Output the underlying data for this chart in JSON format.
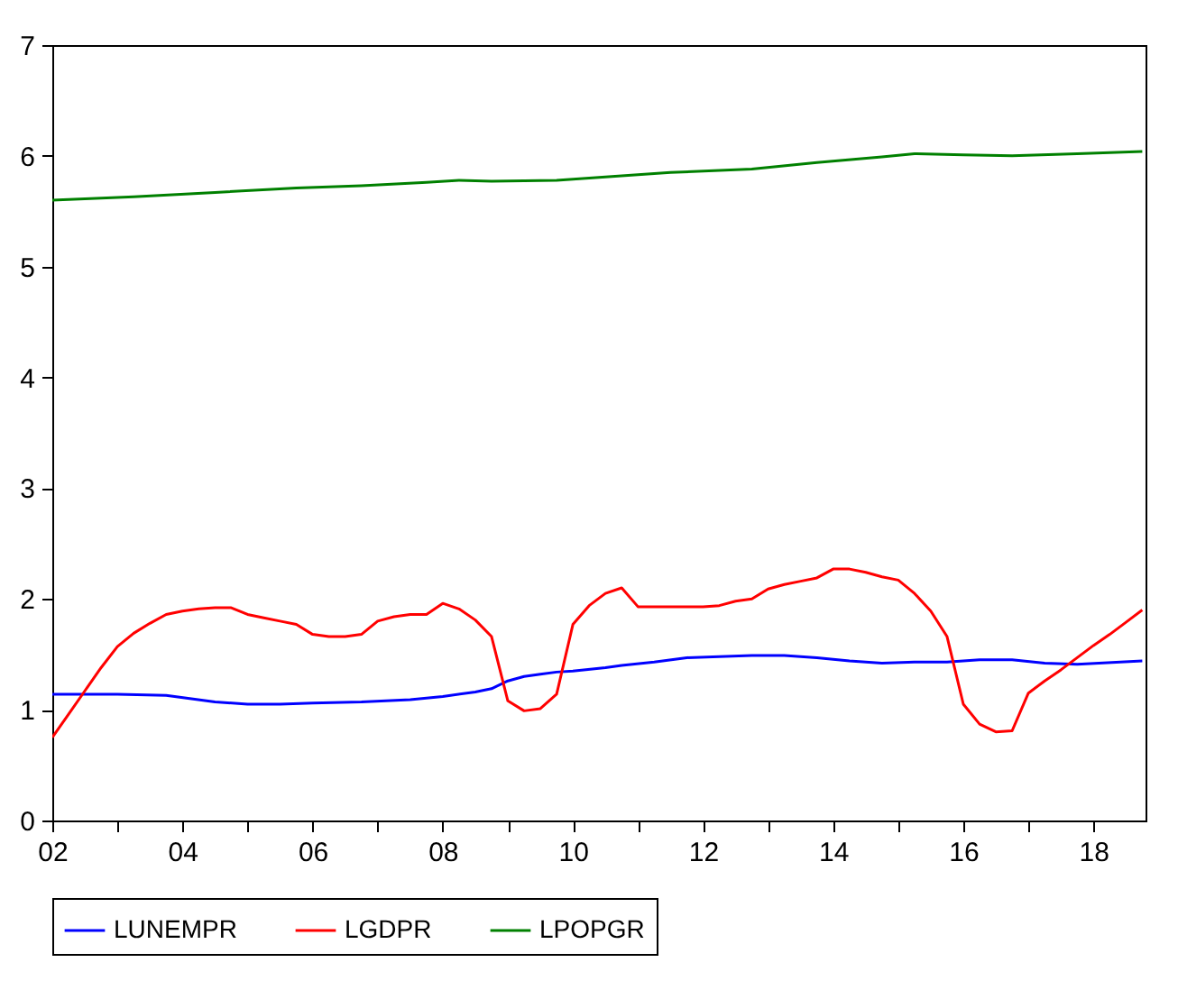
{
  "chart_data": {
    "type": "line",
    "xlim": [
      2002,
      2018.8
    ],
    "xticks": [
      {
        "value": 2002,
        "label": "02"
      },
      {
        "value": 2003,
        "label": null
      },
      {
        "value": 2004,
        "label": "04"
      },
      {
        "value": 2005,
        "label": null
      },
      {
        "value": 2006,
        "label": "06"
      },
      {
        "value": 2007,
        "label": null
      },
      {
        "value": 2008,
        "label": "08"
      },
      {
        "value": 2009,
        "label": null
      },
      {
        "value": 2010,
        "label": "10"
      },
      {
        "value": 2011,
        "label": null
      },
      {
        "value": 2012,
        "label": "12"
      },
      {
        "value": 2013,
        "label": null
      },
      {
        "value": 2014,
        "label": "14"
      },
      {
        "value": 2015,
        "label": null
      },
      {
        "value": 2016,
        "label": "16"
      },
      {
        "value": 2017,
        "label": null
      },
      {
        "value": 2018,
        "label": "18"
      }
    ],
    "ylim": [
      0,
      7
    ],
    "yticks": [
      0,
      1,
      2,
      3,
      4,
      5,
      6,
      7
    ],
    "grid": false,
    "legend": "bottom",
    "line_style": "solid",
    "marker": "none",
    "series": [
      {
        "name": "LUNEMPR",
        "color": "#0000ff",
        "x": [
          2002,
          2003,
          2003.75,
          2004.5,
          2005,
          2005.5,
          2006,
          2006.75,
          2007.5,
          2008,
          2008.5,
          2008.75,
          2009,
          2009.25,
          2009.5,
          2009.75,
          2010,
          2010.5,
          2010.75,
          2011.25,
          2011.75,
          2012.25,
          2012.75,
          2013.25,
          2013.5,
          2013.75,
          2014.25,
          2014.75,
          2015.25,
          2015.75,
          2016.25,
          2016.5,
          2016.75,
          2017.25,
          2017.75,
          2018.75
        ],
        "values": [
          1.14,
          1.14,
          1.13,
          1.07,
          1.05,
          1.05,
          1.06,
          1.07,
          1.09,
          1.12,
          1.16,
          1.19,
          1.26,
          1.3,
          1.32,
          1.34,
          1.35,
          1.38,
          1.4,
          1.43,
          1.47,
          1.48,
          1.49,
          1.49,
          1.48,
          1.47,
          1.44,
          1.42,
          1.43,
          1.43,
          1.45,
          1.45,
          1.45,
          1.42,
          1.41,
          1.44
        ]
      },
      {
        "name": "LGDPR",
        "color": "#ff0000",
        "x": [
          2002,
          2002.25,
          2002.5,
          2002.75,
          2003,
          2003.25,
          2003.5,
          2003.75,
          2004,
          2004.25,
          2004.5,
          2004.75,
          2005,
          2005.25,
          2005.5,
          2005.75,
          2006,
          2006.25,
          2006.5,
          2006.75,
          2007,
          2007.25,
          2007.5,
          2007.75,
          2008,
          2008.25,
          2008.5,
          2008.75,
          2009,
          2009.25,
          2009.5,
          2009.75,
          2010,
          2010.25,
          2010.5,
          2010.75,
          2011,
          2011.25,
          2011.5,
          2011.75,
          2012,
          2012.25,
          2012.5,
          2012.75,
          2013,
          2013.25,
          2013.5,
          2013.75,
          2014,
          2014.25,
          2014.5,
          2014.75,
          2015,
          2015.25,
          2015.5,
          2015.75,
          2016,
          2016.25,
          2016.5,
          2016.75,
          2017,
          2017.25,
          2017.5,
          2017.75,
          2018,
          2018.25,
          2018.5,
          2018.75
        ],
        "values": [
          0.75,
          0.96,
          1.17,
          1.38,
          1.57,
          1.69,
          1.78,
          1.86,
          1.89,
          1.91,
          1.92,
          1.92,
          1.86,
          1.83,
          1.8,
          1.77,
          1.68,
          1.66,
          1.66,
          1.68,
          1.8,
          1.84,
          1.86,
          1.86,
          1.96,
          1.91,
          1.81,
          1.66,
          1.08,
          0.99,
          1.01,
          1.14,
          1.77,
          1.94,
          2.05,
          2.1,
          1.93,
          1.93,
          1.93,
          1.93,
          1.93,
          1.94,
          1.98,
          2.0,
          2.09,
          2.13,
          2.16,
          2.19,
          2.27,
          2.27,
          2.24,
          2.2,
          2.17,
          2.05,
          1.89,
          1.66,
          1.05,
          0.87,
          0.8,
          0.81,
          1.15,
          1.26,
          1.36,
          1.47,
          1.58,
          1.68,
          1.79,
          1.9
        ]
      },
      {
        "name": "LPOPGR",
        "color": "#008000",
        "x": [
          2002,
          2003.25,
          2004.5,
          2005.75,
          2006.75,
          2007.75,
          2008.25,
          2008.75,
          2009.75,
          2010.5,
          2011.5,
          2012.75,
          2013.75,
          2014.75,
          2015.25,
          2016,
          2016.75,
          2017.75,
          2018.75
        ],
        "values": [
          5.6,
          5.63,
          5.67,
          5.71,
          5.73,
          5.76,
          5.78,
          5.77,
          5.78,
          5.81,
          5.85,
          5.88,
          5.94,
          5.99,
          6.02,
          6.01,
          6.0,
          6.02,
          6.04
        ]
      }
    ]
  }
}
